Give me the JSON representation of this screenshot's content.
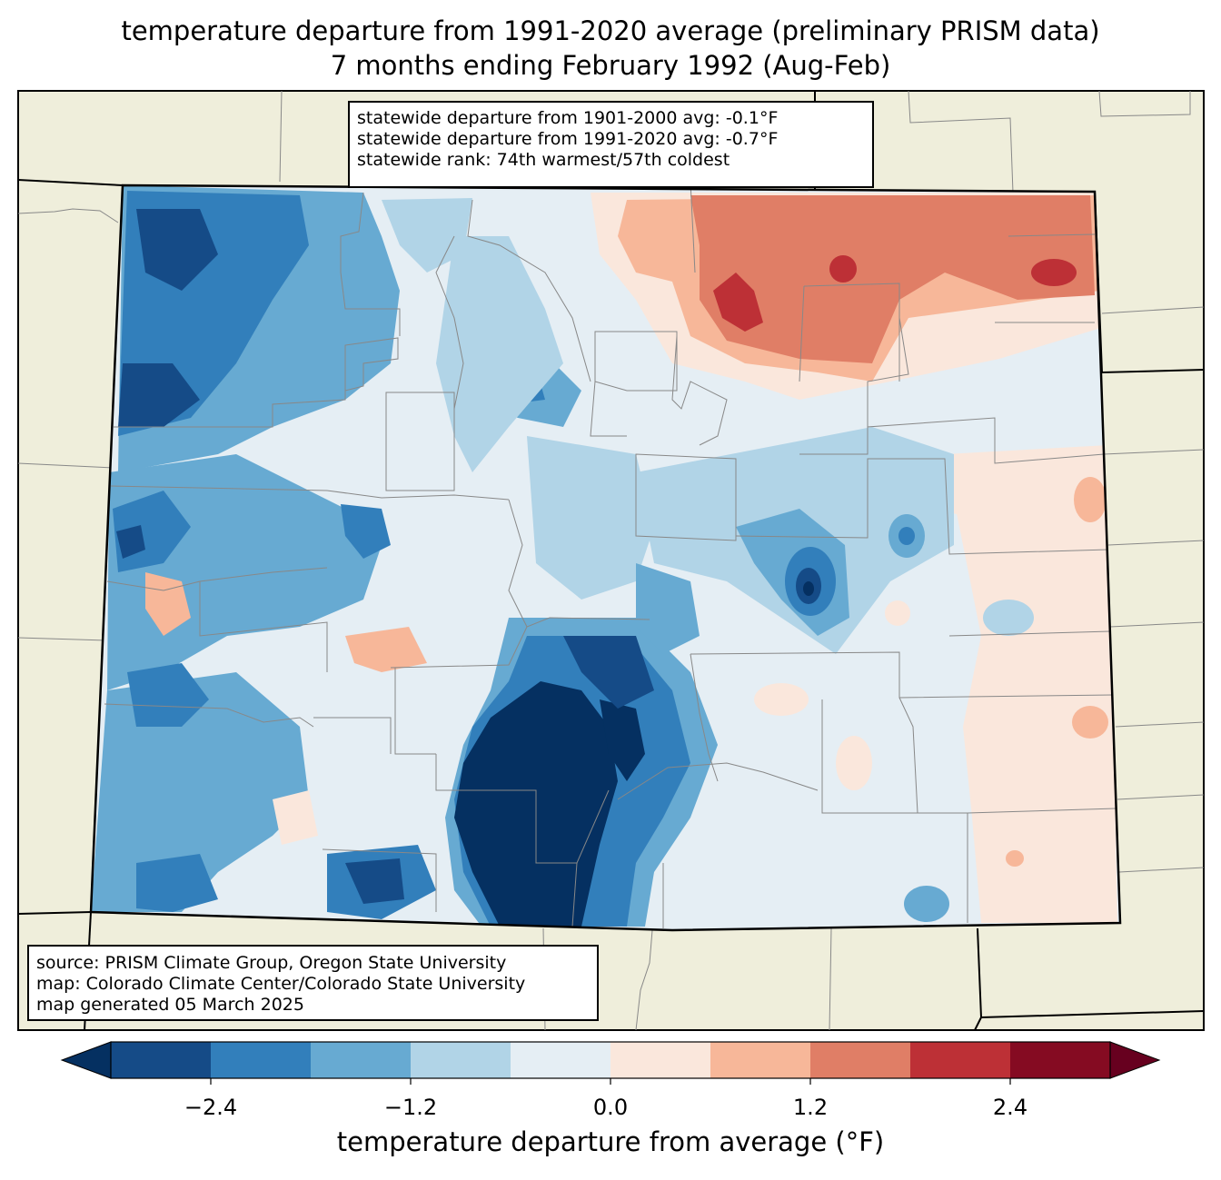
{
  "title": {
    "line1": "temperature departure from 1991-2020 average (preliminary PRISM data)",
    "line2": "7 months ending February 1992 (Aug-Feb)"
  },
  "stats": {
    "line1": "statewide departure from 1901-2000 avg: -0.1°F",
    "line2": "statewide departure from 1991-2020 avg: -0.7°F",
    "line3": "statewide rank: 74th warmest/57th coldest"
  },
  "source": {
    "line1": "source: PRISM Climate Group, Oregon State University",
    "line2": "map: Colorado Climate Center/Colorado State University",
    "line3": "map generated 05 March 2025"
  },
  "colorbar": {
    "label": "temperature departure from average (°F)",
    "ticks": [
      "−2.4",
      "−1.2",
      "0.0",
      "1.2",
      "2.4"
    ],
    "tick_values": [
      -2.4,
      -1.2,
      0.0,
      1.2,
      2.4
    ],
    "range": [
      -3.0,
      3.0
    ],
    "step": 0.6,
    "under_color": "#053061",
    "over_color": "#67001f",
    "colors": [
      "#154b87",
      "#327fbb",
      "#67aad2",
      "#b1d4e7",
      "#e5eef4",
      "#fae7dc",
      "#f7b799",
      "#e07e66",
      "#bd3036",
      "#850b22"
    ]
  },
  "colors": {
    "land": "#efeedb",
    "border": "#000000",
    "county_lines": "#888888"
  }
}
